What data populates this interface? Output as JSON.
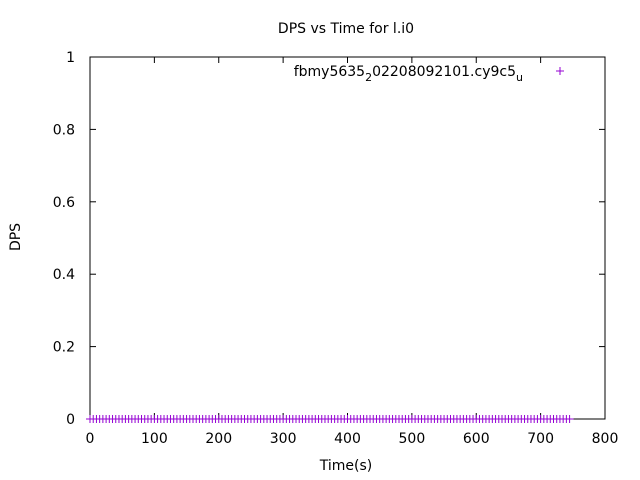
{
  "chart_data": {
    "type": "scatter",
    "title": "DPS vs Time for l.i0",
    "xlabel": "Time(s)",
    "ylabel": "DPS",
    "xlim": [
      0,
      800
    ],
    "ylim": [
      0,
      1
    ],
    "x_ticks": [
      "0",
      "100",
      "200",
      "300",
      "400",
      "500",
      "600",
      "700",
      "800"
    ],
    "y_ticks": [
      "0",
      "0.2",
      "0.4",
      "0.6",
      "0.8",
      "1"
    ],
    "grid": false,
    "legend_position": "top-right",
    "series": [
      {
        "name_parts": [
          "fbmy5635",
          "2",
          "02208092101.cy9c5",
          "u"
        ],
        "color": "#9400d3",
        "marker": "plus",
        "x_range": [
          0,
          745
        ],
        "x_step": 5,
        "y_value": 0
      }
    ]
  }
}
